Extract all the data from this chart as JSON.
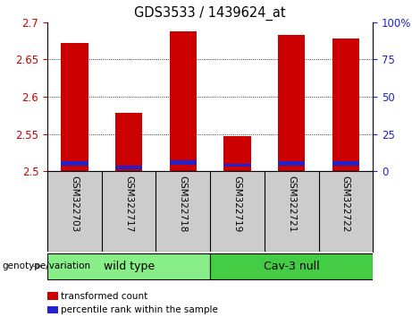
{
  "title": "GDS3533 / 1439624_at",
  "samples": [
    "GSM322703",
    "GSM322717",
    "GSM322718",
    "GSM322719",
    "GSM322721",
    "GSM322722"
  ],
  "red_values": [
    2.672,
    2.578,
    2.688,
    2.547,
    2.683,
    2.678
  ],
  "blue_bottom": [
    2.508,
    2.503,
    2.509,
    2.506,
    2.508,
    2.508
  ],
  "blue_heights": [
    0.006,
    0.004,
    0.006,
    0.004,
    0.006,
    0.006
  ],
  "ymin": 2.5,
  "ymax": 2.7,
  "yticks_left": [
    2.5,
    2.55,
    2.6,
    2.65,
    2.7
  ],
  "yticks_right": [
    0,
    25,
    50,
    75,
    100
  ],
  "bar_width": 0.5,
  "red_color": "#cc0000",
  "blue_color": "#2222cc",
  "groups": [
    {
      "label": "wild type",
      "indices": [
        0,
        1,
        2
      ],
      "color": "#88ee88"
    },
    {
      "label": "Cav-3 null",
      "indices": [
        3,
        4,
        5
      ],
      "color": "#44cc44"
    }
  ],
  "genotype_label": "genotype/variation",
  "legend_items": [
    {
      "color": "#cc0000",
      "label": "transformed count"
    },
    {
      "color": "#2222cc",
      "label": "percentile rank within the sample"
    }
  ],
  "bg_color": "#ffffff",
  "label_bg": "#cccccc",
  "left_tick_color": "#cc0000",
  "right_tick_color": "#2222cc",
  "grid_yticks": [
    2.5,
    2.55,
    2.6,
    2.65
  ]
}
